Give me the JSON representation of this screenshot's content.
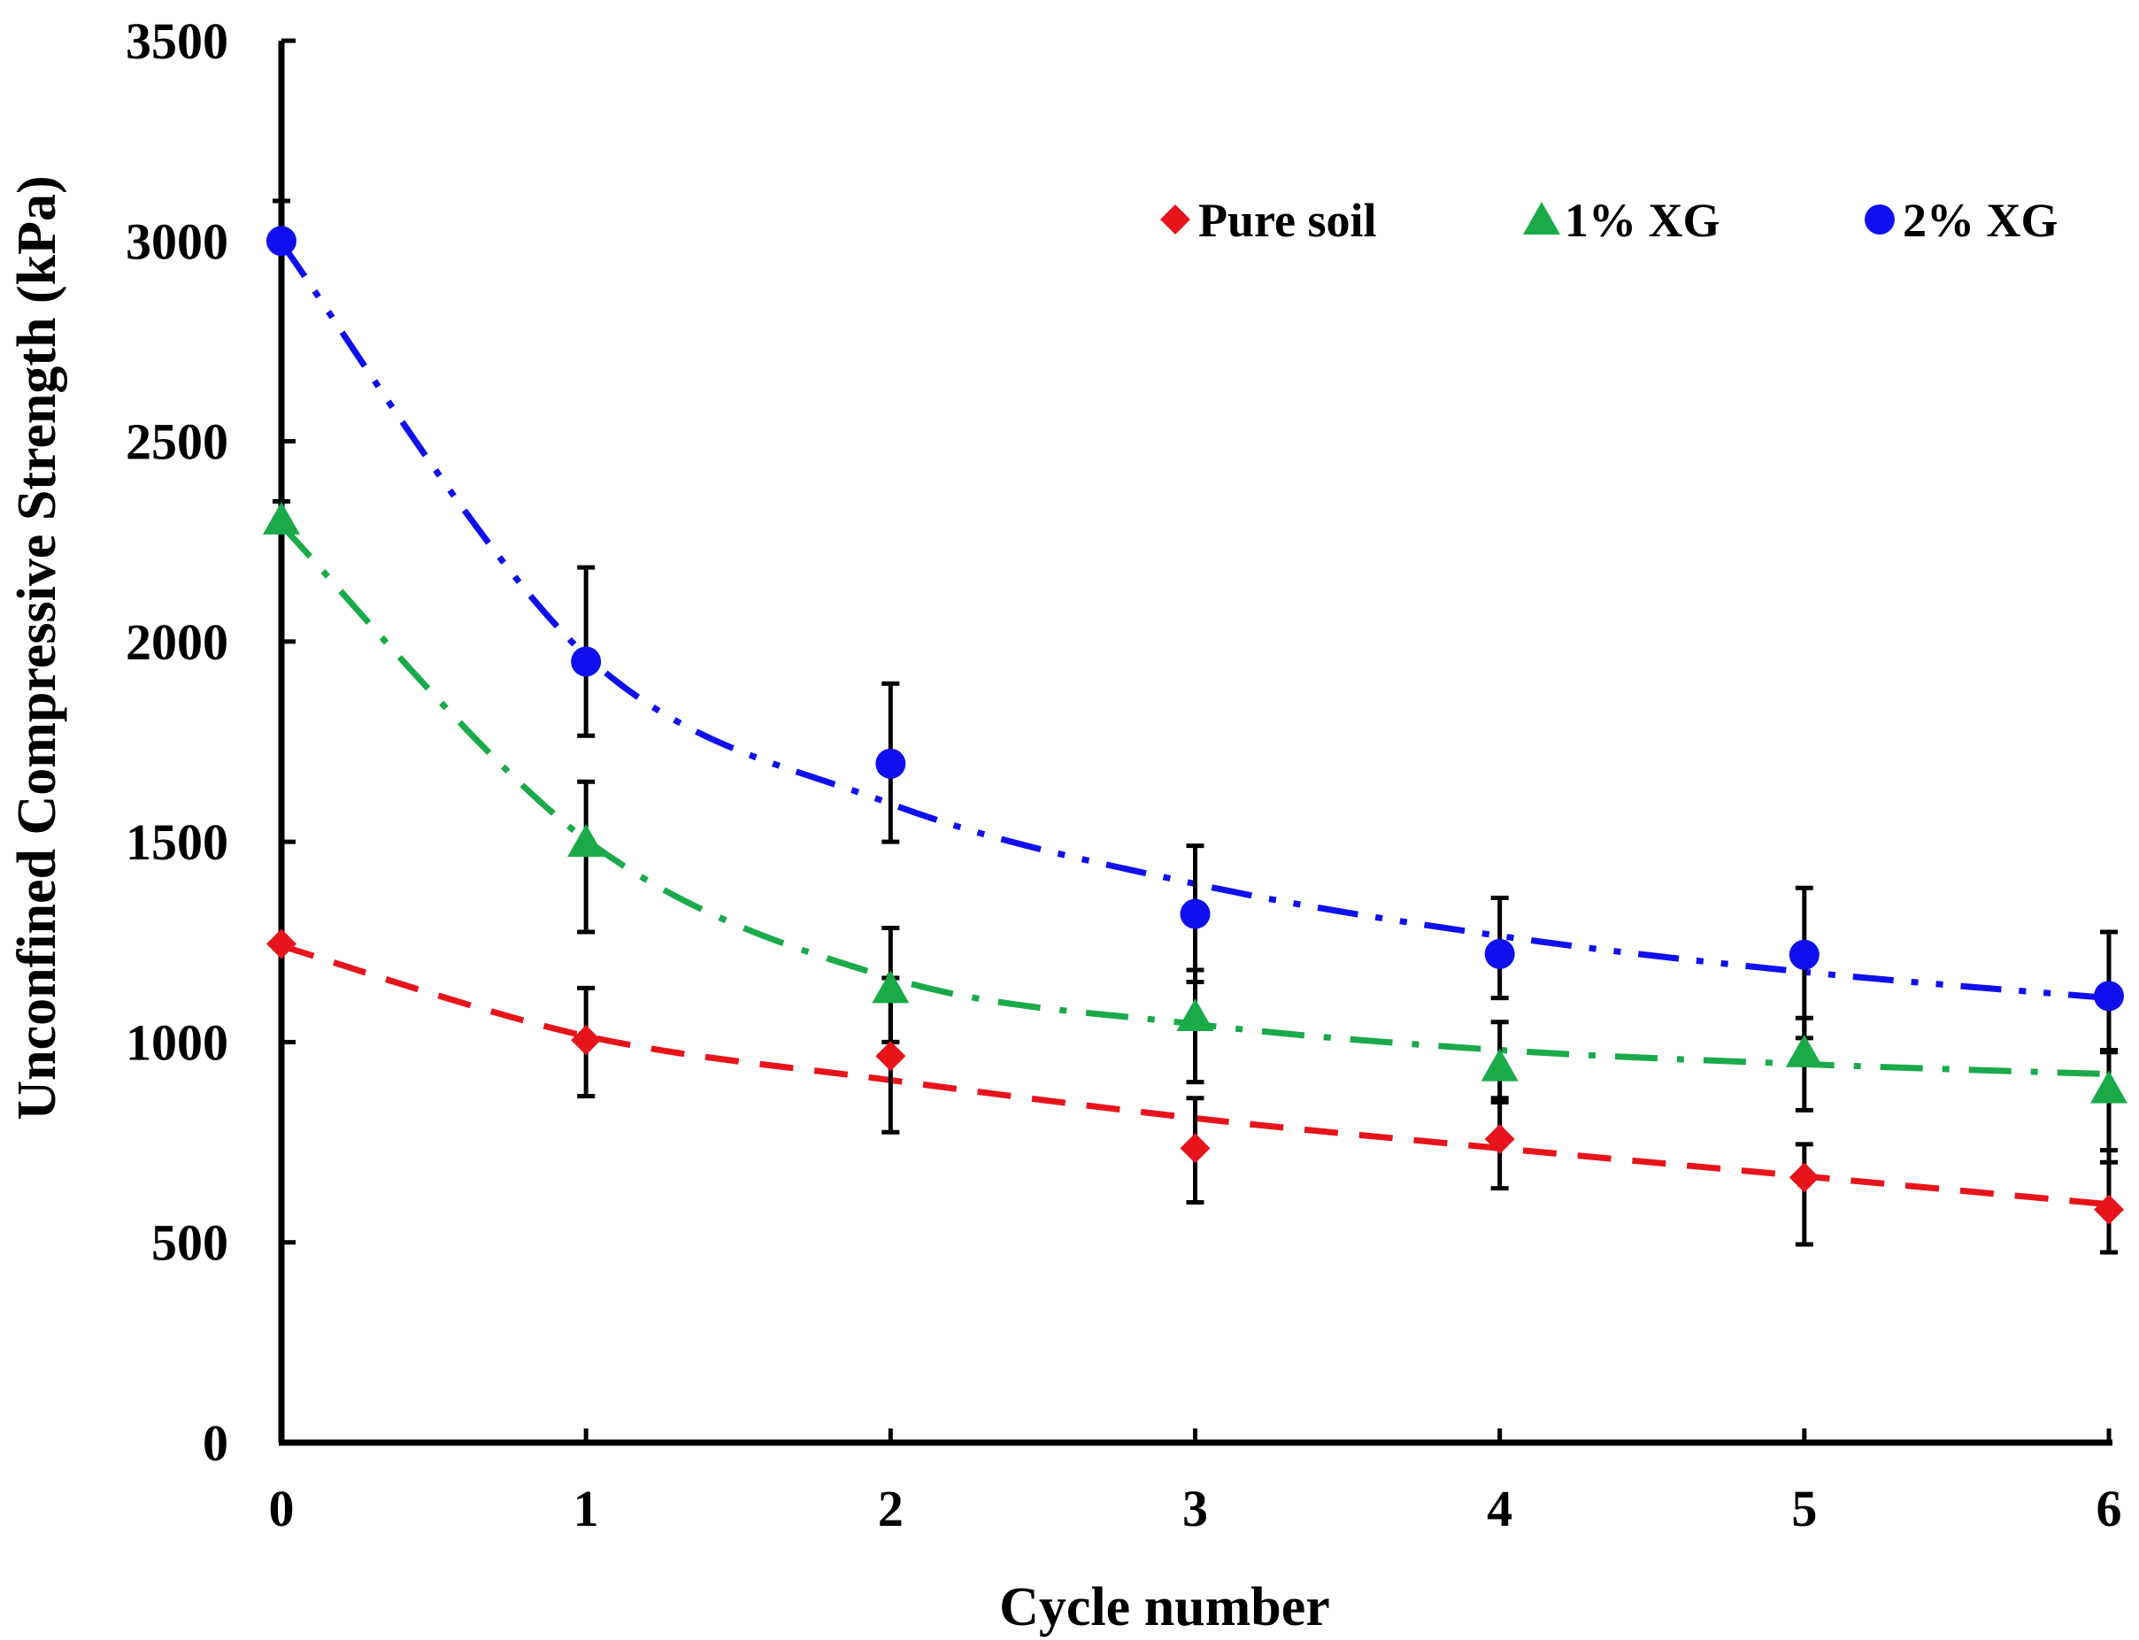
{
  "chart_data": {
    "type": "scatter",
    "title": "",
    "xlabel": "Cycle number",
    "ylabel": "Unconfined Compressive Strength (kPa)",
    "xlim": [
      0,
      6
    ],
    "ylim": [
      0,
      3500
    ],
    "x_ticks": [
      "0",
      "1",
      "2",
      "3",
      "4",
      "5",
      "6"
    ],
    "y_ticks": [
      "0",
      "500",
      "1000",
      "1500",
      "2000",
      "2500",
      "3000",
      "3500"
    ],
    "grid": false,
    "legend_position": "top-right",
    "x": [
      0,
      1,
      2,
      3,
      4,
      5,
      6
    ],
    "series": [
      {
        "name": "Pure soil",
        "marker": "diamond",
        "color": "#E8141B",
        "line_style": "dashed",
        "values": [
          1245,
          1005,
          965,
          735,
          758,
          662,
          582
        ],
        "error_low": [
          1245,
          865,
          775,
          600,
          635,
          495,
          475
        ],
        "error_high": [
          1245,
          1135,
          1160,
          860,
          860,
          745,
          730
        ],
        "trend": [
          1240,
          1015,
          905,
          810,
          735,
          665,
          595
        ]
      },
      {
        "name": "1% XG",
        "marker": "triangle",
        "color": "#1AAA4A",
        "line_style": "dash-dot",
        "values": [
          2305,
          1500,
          1135,
          1065,
          940,
          975,
          885
        ],
        "error_low": [
          2305,
          1275,
          1000,
          900,
          850,
          830,
          700
        ],
        "error_high": [
          2350,
          1650,
          1285,
          1180,
          1050,
          1060,
          980
        ],
        "trend": [
          2290,
          1505,
          1160,
          1045,
          980,
          945,
          920
        ]
      },
      {
        "name": "2% XG",
        "marker": "circle",
        "color": "#1010EE",
        "line_style": "dash-dot-dot",
        "values": [
          3000,
          1950,
          1695,
          1320,
          1220,
          1218,
          1115
        ],
        "error_low": [
          3000,
          1765,
          1500,
          1150,
          1110,
          1010,
          975
        ],
        "error_high": [
          3100,
          2185,
          1895,
          1490,
          1360,
          1385,
          1275
        ],
        "trend": [
          2995,
          1965,
          1595,
          1395,
          1265,
          1175,
          1110
        ]
      }
    ]
  }
}
